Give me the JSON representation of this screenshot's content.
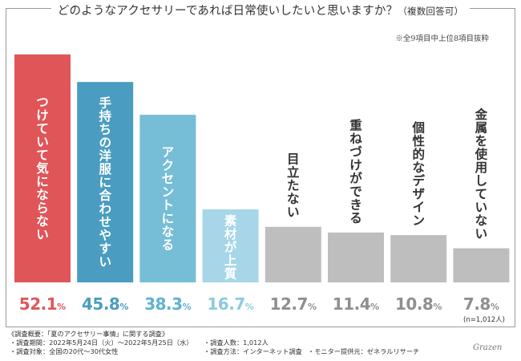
{
  "header": {
    "title": "どのようなアクセサリーであれば日常使いしたいと思いますか？",
    "title_suffix": "（複数回答可）",
    "note": "※全9項目中上位8項目抜粋"
  },
  "chart_data": {
    "type": "bar",
    "title": "どのようなアクセサリーであれば日常使いしたいと思いますか？（複数回答可）",
    "categories": [
      "つけていて気にならない",
      "手持ちの洋服に合わせやすい",
      "アクセントになる",
      "素材が上質",
      "目立たない",
      "重ねづけができる",
      "個性的なデザイン",
      "金属を使用していない"
    ],
    "values": [
      52.1,
      45.8,
      38.3,
      16.7,
      12.7,
      11.4,
      10.8,
      7.8
    ],
    "value_labels": [
      "52.1%",
      "45.8%",
      "38.3%",
      "16.7%",
      "12.7%",
      "11.4%",
      "10.8%",
      "7.8%"
    ],
    "sample_note": "(n=1,012人)",
    "ylim": [
      0,
      55
    ],
    "bar_colors": [
      "#e05558",
      "#4a9dc0",
      "#76bdd6",
      "#a6d6e8",
      "#bebebe",
      "#bebebe",
      "#bebebe",
      "#bebebe"
    ],
    "label_colors": [
      "#e05558",
      "#4a9dc0",
      "#5fb2cf",
      "#8ccae0",
      "#8f8f8f",
      "#8f8f8f",
      "#8f8f8f",
      "#8f8f8f"
    ],
    "inside_text_colors": [
      "#ffffff",
      "#ffffff",
      "#ffffff",
      "#ffffff",
      "#333333",
      "#333333",
      "#333333",
      "#333333"
    ]
  },
  "footer": {
    "overview": "《調査概要：「夏のアクセサリー事情」に関する調査》",
    "period": "・調査期間：2022年5月24日（火）〜2022年5月25日（水）",
    "target": "・調査対象：全国の20代〜30代女性",
    "count": "・調査人数：1,012人",
    "method": "・調査方法：インターネット調査",
    "provider": "・モニター提供元：ゼネラルリサーチ",
    "signature": "Grazen"
  }
}
